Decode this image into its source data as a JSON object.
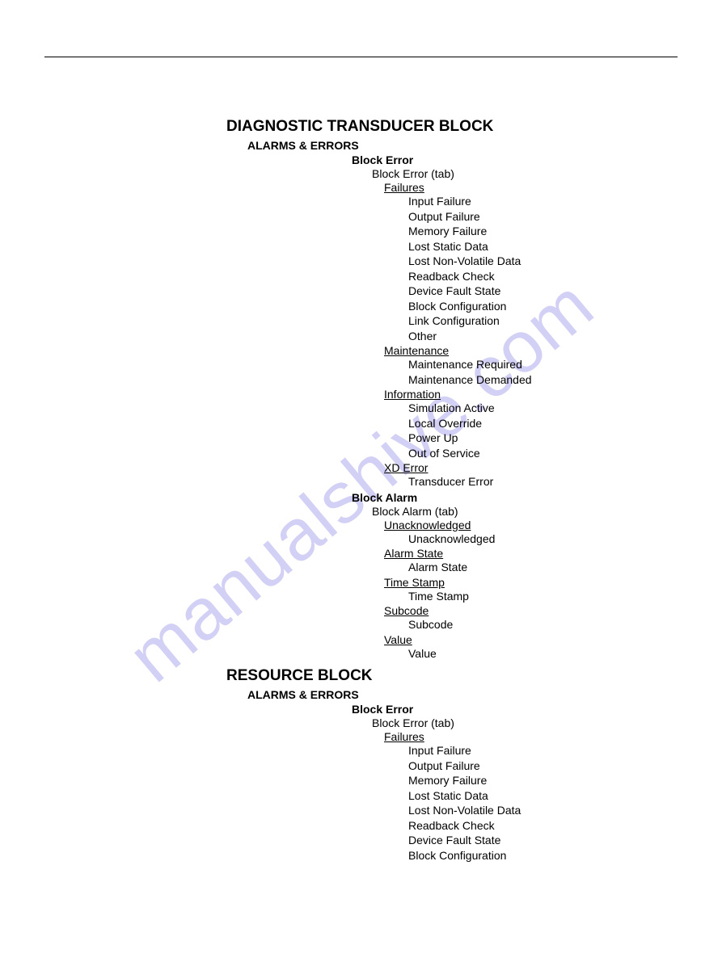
{
  "watermark": "manualshive.com",
  "blocks": [
    {
      "title": "DIAGNOSTIC TRANSDUCER BLOCK",
      "sections": [
        {
          "title": "ALARMS & ERRORS",
          "subs": [
            {
              "title": "Block Error",
              "tab": "Block Error (tab)",
              "groups": [
                {
                  "name": "Failures",
                  "items": [
                    "Input Failure",
                    "Output Failure",
                    "Memory Failure",
                    "Lost Static Data",
                    "Lost Non-Volatile Data",
                    "Readback Check",
                    "Device Fault State",
                    "Block Configuration",
                    "Link Configuration",
                    "Other"
                  ]
                },
                {
                  "name": "Maintenance",
                  "items": [
                    "Maintenance Required",
                    "Maintenance Demanded"
                  ]
                },
                {
                  "name": "Information",
                  "items": [
                    "Simulation Active",
                    "Local Override",
                    "Power Up",
                    "Out of Service"
                  ]
                },
                {
                  "name": "XD Error",
                  "items": [
                    "Transducer Error"
                  ]
                }
              ]
            },
            {
              "title": "Block Alarm",
              "tab": "Block Alarm (tab)",
              "groups": [
                {
                  "name": "Unacknowledged",
                  "items": [
                    "Unacknowledged"
                  ]
                },
                {
                  "name": "Alarm State",
                  "items": [
                    "Alarm State"
                  ]
                },
                {
                  "name": "Time Stamp",
                  "items": [
                    "Time Stamp"
                  ]
                },
                {
                  "name": "Subcode",
                  "items": [
                    "Subcode"
                  ]
                },
                {
                  "name": "Value",
                  "items": [
                    "Value"
                  ]
                }
              ]
            }
          ]
        }
      ]
    },
    {
      "title": "RESOURCE BLOCK",
      "sections": [
        {
          "title": "ALARMS & ERRORS",
          "subs": [
            {
              "title": "Block Error",
              "tab": "Block Error (tab)",
              "groups": [
                {
                  "name": "Failures",
                  "items": [
                    "Input Failure",
                    "Output Failure",
                    "Memory Failure",
                    "Lost Static Data",
                    "Lost Non-Volatile Data",
                    "Readback Check",
                    "Device Fault State",
                    "Block Configuration"
                  ]
                }
              ]
            }
          ]
        }
      ]
    }
  ]
}
